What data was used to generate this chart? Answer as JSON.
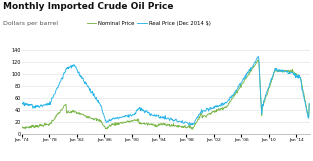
{
  "title": "Monthly Imported Crude Oil Price",
  "subtitle": "Dollars per barrel",
  "legend_nominal": "Nominal Price",
  "legend_real": "Real Price (Dec 2014 $)",
  "nominal_color": "#7ab648",
  "real_color": "#29b5e8",
  "background_color": "#ffffff",
  "grid_color": "#dddddd",
  "ylim": [
    0,
    140
  ],
  "yticks": [
    0,
    20,
    40,
    60,
    80,
    100,
    120,
    140
  ],
  "x_start_year": 1974,
  "x_end_year": 2016,
  "xtick_years": [
    1974,
    1978,
    1982,
    1986,
    1990,
    1994,
    1998,
    2002,
    2006,
    2010,
    2014
  ]
}
